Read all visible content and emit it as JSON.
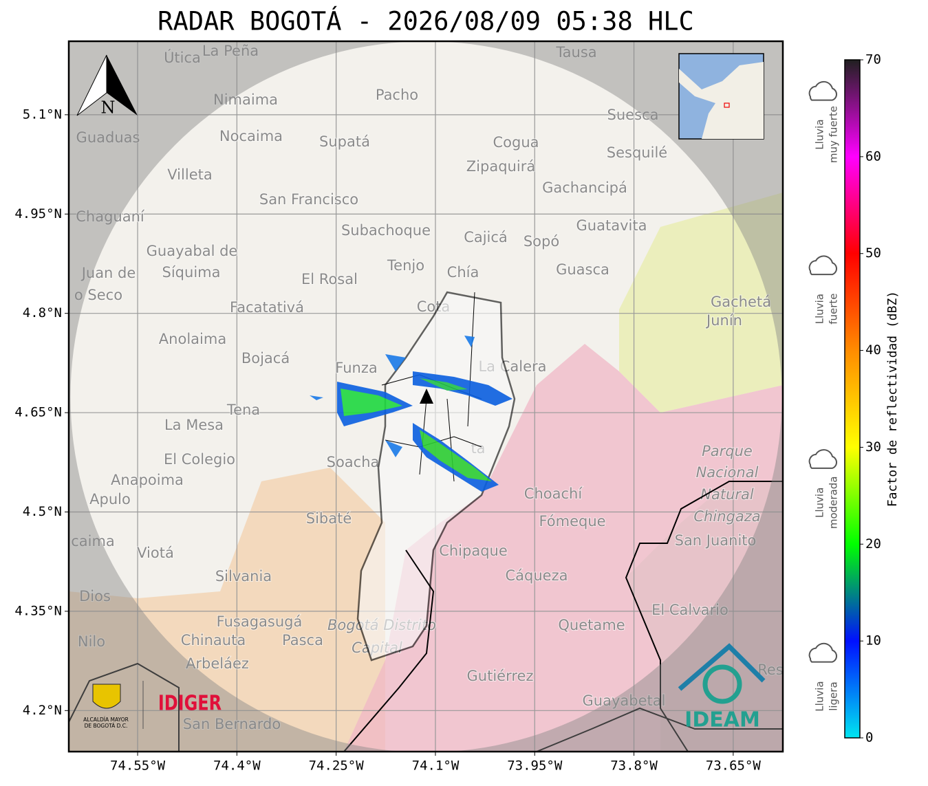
{
  "map": {
    "title": "RADAR BOGOTÁ - 2026/08/09 05:38 HLC",
    "xlim": [
      -74.654,
      -73.575
    ],
    "ylim": [
      4.138,
      5.211
    ],
    "xticks": [
      {
        "value": -74.55,
        "label": "74.55°W"
      },
      {
        "value": -74.4,
        "label": "74.4°W"
      },
      {
        "value": -74.25,
        "label": "74.25°W"
      },
      {
        "value": -74.1,
        "label": "74.1°W"
      },
      {
        "value": -73.95,
        "label": "73.95°W"
      },
      {
        "value": -73.8,
        "label": "73.8°W"
      },
      {
        "value": -73.65,
        "label": "73.65°W"
      }
    ],
    "yticks": [
      {
        "value": 5.1,
        "label": "5.1°N"
      },
      {
        "value": 4.95,
        "label": "4.95°N"
      },
      {
        "value": 4.8,
        "label": "4.8°N"
      },
      {
        "value": 4.65,
        "label": "4.65°N"
      },
      {
        "value": 4.5,
        "label": "4.5°N"
      },
      {
        "value": 4.35,
        "label": "4.35°N"
      },
      {
        "value": 4.2,
        "label": "4.2°N"
      }
    ],
    "grid": true,
    "north": "N",
    "places": [
      "Útica",
      "La Peña",
      "Tausa",
      "Pacho",
      "Nimaima",
      "Suesca",
      "Guaduas",
      "Nocaima",
      "Supatá",
      "Cogua",
      "Sesquilé",
      "Zipaquirá",
      "Villeta",
      "Gachancipá",
      "San Francisco",
      "Chaguaní",
      "Guatavita",
      "Subachoque",
      "Cajicá",
      "Sopó",
      "Guayabal de",
      "Síquima",
      "Juan de",
      "Tenjo",
      "Chía",
      "Guasca",
      "El Rosal",
      "o Seco",
      "Gachetá",
      "Junín",
      "Facatativá",
      "Cota",
      "Anolaima",
      "Bojacá",
      "Funza",
      "La Calera",
      "Tena",
      "La Mesa",
      "Parque",
      "Nacional",
      "Natural",
      "Chingaza",
      "El Colegio",
      "Soacha",
      "ta",
      "Anapoima",
      "Choachí",
      "Apulo",
      "Sibaté",
      "Fómeque",
      "San Juanito",
      "caima",
      "Viotá",
      "Chipaque",
      "Silvania",
      "Cáqueza",
      "Dios",
      "El Calvario",
      "Fusagasugá",
      "Bogotá Distrito",
      "Capital",
      "Quetame",
      "Nilo",
      "Chinauta",
      "Pasca",
      "Arbeláez",
      "Gutiérrez",
      "Res",
      "Guayabetal",
      "San Bernardo"
    ],
    "logos": {
      "idiger": "IDIGER",
      "ideam": "IDEAM",
      "alcaldia": [
        "ALCALDÍA MAYOR",
        "DE BOGOTÁ D.C."
      ]
    }
  },
  "colorbar": {
    "label": "Factor de reflectividad (dBZ)",
    "lim": [
      0,
      70
    ],
    "ticks": [
      0,
      10,
      20,
      30,
      40,
      50,
      60,
      70
    ],
    "colors": [
      "#00e5f0",
      "#0010ff",
      "#00ff00",
      "#ffff00",
      "#ff8c00",
      "#ff0000",
      "#ff00ff",
      "#202020"
    ],
    "categories": [
      {
        "lines": [
          "Lluvia",
          "ligera"
        ],
        "value": 5
      },
      {
        "lines": [
          "Lluvia",
          "moderada"
        ],
        "value": 25
      },
      {
        "lines": [
          "Lluvia",
          "fuerte"
        ],
        "value": 45
      },
      {
        "lines": [
          "Lluvia",
          "muy fuerte"
        ],
        "value": 63
      }
    ]
  }
}
